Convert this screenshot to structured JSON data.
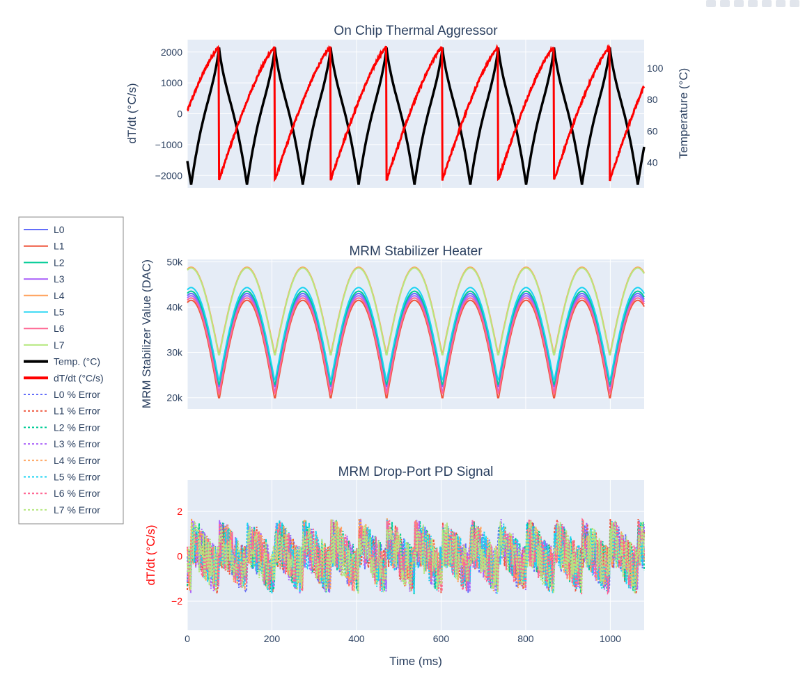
{
  "colors": {
    "plot_bg": "#e5ecf6",
    "grid": "#ffffff",
    "text": "#2a3f5f",
    "temp": "#000000",
    "dtdt": "#ff0000",
    "lanes": [
      "#636efa",
      "#ef553b",
      "#00cc96",
      "#ab63fa",
      "#ffa15a",
      "#19d3f3",
      "#ff6692",
      "#b6e880"
    ]
  },
  "legend": {
    "position": "left",
    "items": [
      {
        "label": "L0",
        "color": "#636efa",
        "style": "solid",
        "width": 2
      },
      {
        "label": "L1",
        "color": "#ef553b",
        "style": "solid",
        "width": 2
      },
      {
        "label": "L2",
        "color": "#00cc96",
        "style": "solid",
        "width": 2
      },
      {
        "label": "L3",
        "color": "#ab63fa",
        "style": "solid",
        "width": 2
      },
      {
        "label": "L4",
        "color": "#ffa15a",
        "style": "solid",
        "width": 2
      },
      {
        "label": "L5",
        "color": "#19d3f3",
        "style": "solid",
        "width": 2
      },
      {
        "label": "L6",
        "color": "#ff6692",
        "style": "solid",
        "width": 2
      },
      {
        "label": "L7",
        "color": "#b6e880",
        "style": "solid",
        "width": 2
      },
      {
        "label": "Temp. (°C)",
        "color": "#000000",
        "style": "solid",
        "width": 4
      },
      {
        "label": "dT/dt (°C/s)",
        "color": "#ff0000",
        "style": "solid",
        "width": 4
      },
      {
        "label": "L0 % Error",
        "color": "#636efa",
        "style": "dot",
        "width": 2
      },
      {
        "label": "L1 % Error",
        "color": "#ef553b",
        "style": "dot",
        "width": 2
      },
      {
        "label": "L2 % Error",
        "color": "#00cc96",
        "style": "dot",
        "width": 2
      },
      {
        "label": "L3 % Error",
        "color": "#ab63fa",
        "style": "dot",
        "width": 2
      },
      {
        "label": "L4 % Error",
        "color": "#ffa15a",
        "style": "dot",
        "width": 2
      },
      {
        "label": "L5 % Error",
        "color": "#19d3f3",
        "style": "dot",
        "width": 2
      },
      {
        "label": "L6 % Error",
        "color": "#ff6692",
        "style": "dot",
        "width": 2
      },
      {
        "label": "L7 % Error",
        "color": "#b6e880",
        "style": "dot",
        "width": 2
      }
    ]
  },
  "chart_data": [
    {
      "type": "line",
      "title": "On Chip Thermal Aggressor",
      "xlabel": "",
      "ylabel": "dT/dt (°C/s)",
      "y2label": "Temperature (°C)",
      "xlim": [
        0,
        1080
      ],
      "ylim": [
        -2400,
        2400
      ],
      "y2lim": [
        24,
        118
      ],
      "yticks": [
        -2000,
        -1000,
        0,
        1000,
        2000
      ],
      "ytick_labels": [
        "−2000",
        "−1000",
        "0",
        "1000",
        "2000"
      ],
      "y2ticks": [
        40,
        60,
        80,
        100
      ],
      "y2tick_labels": [
        "40",
        "60",
        "80",
        "100"
      ],
      "period_ms": 132,
      "peak_times_ms": [
        75,
        207,
        339,
        471,
        603,
        735,
        867,
        999
      ],
      "series": [
        {
          "name": "Temp. (°C)",
          "axis": "y2",
          "color": "#000000",
          "min": 26,
          "max": 113
        },
        {
          "name": "dT/dt (°C/s)",
          "axis": "y",
          "color": "#ff0000",
          "min": -2150,
          "max": 2150
        }
      ],
      "grid": true
    },
    {
      "type": "line",
      "title": "MRM Stabilizer Heater",
      "xlabel": "",
      "ylabel": "MRM Stabilizer Value (DAC)",
      "xlim": [
        0,
        1080
      ],
      "ylim": [
        17500,
        50500
      ],
      "yticks": [
        20000,
        30000,
        40000,
        50000
      ],
      "ytick_labels": [
        "20k",
        "30k",
        "40k",
        "50k"
      ],
      "series": [
        {
          "name": "L0",
          "color": "#636efa",
          "max": 43000,
          "min": 22000
        },
        {
          "name": "L1",
          "color": "#ef553b",
          "max": 41500,
          "min": 19500
        },
        {
          "name": "L2",
          "color": "#00cc96",
          "max": 43500,
          "min": 22500
        },
        {
          "name": "L3",
          "color": "#ab63fa",
          "max": 42500,
          "min": 21000
        },
        {
          "name": "L4",
          "color": "#ffa15a",
          "max": 48800,
          "min": 29500
        },
        {
          "name": "L5",
          "color": "#19d3f3",
          "max": 44300,
          "min": 23500
        },
        {
          "name": "L6",
          "color": "#ff6692",
          "max": 42000,
          "min": 20500
        },
        {
          "name": "L7",
          "color": "#b6e880",
          "max": 48600,
          "min": 29000
        }
      ],
      "grid": true
    },
    {
      "type": "line",
      "title": "MRM Drop-Port PD Signal",
      "xlabel": "Time (ms)",
      "ylabel": "dT/dt (°C/s)",
      "ylabel_color": "#ff0000",
      "tick_color": "#ff0000",
      "xlim": [
        0,
        1080
      ],
      "ylim": [
        -3.3,
        3.4
      ],
      "yticks": [
        -2,
        0,
        2
      ],
      "ytick_labels": [
        "−2",
        "0",
        "2"
      ],
      "xticks": [
        0,
        200,
        400,
        600,
        800,
        1000
      ],
      "xtick_labels": [
        "0",
        "200",
        "400",
        "600",
        "800",
        "1000"
      ],
      "series": [
        {
          "name": "L0 % Error",
          "color": "#636efa",
          "range": [
            -2,
            2
          ]
        },
        {
          "name": "L1 % Error",
          "color": "#ef553b",
          "range": [
            -2,
            3
          ]
        },
        {
          "name": "L2 % Error",
          "color": "#00cc96",
          "range": [
            -2,
            2
          ]
        },
        {
          "name": "L3 % Error",
          "color": "#ab63fa",
          "range": [
            -2,
            2
          ]
        },
        {
          "name": "L4 % Error",
          "color": "#ffa15a",
          "range": [
            -2,
            2
          ]
        },
        {
          "name": "L5 % Error",
          "color": "#19d3f3",
          "range": [
            -2,
            2
          ]
        },
        {
          "name": "L6 % Error",
          "color": "#ff6692",
          "range": [
            -2,
            2
          ]
        },
        {
          "name": "L7 % Error",
          "color": "#b6e880",
          "range": [
            -2.7,
            2
          ]
        }
      ],
      "grid": true
    }
  ]
}
